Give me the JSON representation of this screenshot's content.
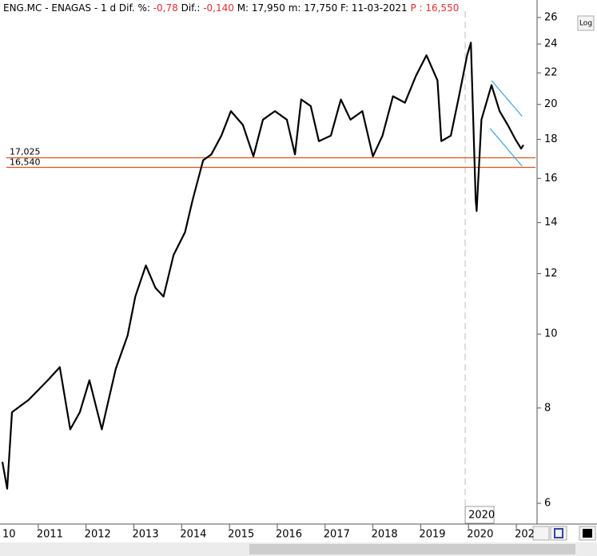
{
  "chart_data": {
    "type": "line",
    "header": [
      {
        "text": "ENG.MC - ENAGAS -  1 d Dif. %: ",
        "color": "#000000"
      },
      {
        "text": "-0,78",
        "color": "#e03030"
      },
      {
        "text": " Dif.: ",
        "color": "#000000"
      },
      {
        "text": "-0,140",
        "color": "#e03030"
      },
      {
        "text": " M: 17,950  m: 17,750  F: 11-03-2021 ",
        "color": "#000000"
      },
      {
        "text": "P : 16,550",
        "color": "#e03030"
      }
    ],
    "log_button": "Log",
    "log_scale": true,
    "xlim": [
      2010.2,
      2021.4
    ],
    "ylim": [
      5.65,
      26.5
    ],
    "xticks": [
      {
        "value": 2010,
        "label": "10"
      },
      2011,
      2012,
      2013,
      2014,
      2015,
      2016,
      2017,
      2018,
      2019,
      2020,
      {
        "value": 2021,
        "label": "202"
      }
    ],
    "yticks": [
      6,
      8,
      10,
      12,
      14,
      16,
      18,
      20,
      22,
      24,
      26
    ],
    "series": [
      {
        "color": "#000000",
        "x": [
          2010.25,
          2010.35,
          2010.45,
          2010.8,
          2011.2,
          2011.45,
          2011.67,
          2011.87,
          2012.07,
          2012.33,
          2012.62,
          2012.87,
          2013.03,
          2013.25,
          2013.45,
          2013.62,
          2013.83,
          2014.07,
          2014.23,
          2014.45,
          2014.62,
          2014.83,
          2015.03,
          2015.28,
          2015.5,
          2015.7,
          2015.95,
          2016.2,
          2016.37,
          2016.5,
          2016.7,
          2016.87,
          2017.12,
          2017.33,
          2017.53,
          2017.78,
          2018.0,
          2018.2,
          2018.42,
          2018.67,
          2018.9,
          2019.12,
          2019.35,
          2019.43,
          2019.63,
          2019.8,
          2019.97,
          2020.05,
          2020.15,
          2020.17,
          2020.27,
          2020.48,
          2020.65,
          2020.82,
          2020.98,
          2021.1,
          2021.15
        ],
        "values": [
          6.8,
          6.27,
          7.9,
          8.2,
          8.7,
          9.05,
          7.5,
          7.9,
          8.7,
          7.5,
          9.0,
          9.96,
          11.2,
          12.3,
          11.5,
          11.2,
          12.7,
          13.6,
          15.0,
          16.9,
          17.2,
          18.2,
          19.6,
          18.8,
          17.1,
          19.1,
          19.6,
          19.1,
          17.2,
          20.3,
          19.9,
          17.9,
          18.2,
          20.3,
          19.1,
          19.6,
          17.1,
          18.2,
          20.5,
          20.1,
          21.8,
          23.2,
          21.5,
          17.9,
          18.2,
          20.5,
          23.2,
          24.1,
          15.0,
          14.5,
          19.1,
          21.2,
          19.6,
          18.8,
          18.0,
          17.5,
          17.7
        ]
      }
    ],
    "levels": [
      {
        "value": 17.025,
        "label": "17,025",
        "color": "#d9541c"
      },
      {
        "value": 16.54,
        "label": "16,540",
        "color": "#d9541c"
      }
    ],
    "trend_lines": [
      {
        "x": [
          2020.48,
          2021.12
        ],
        "y": [
          21.5,
          19.3
        ],
        "color": "#3aa6d8"
      },
      {
        "x": [
          2020.45,
          2021.12
        ],
        "y": [
          18.6,
          16.6
        ],
        "color": "#3aa6d8"
      }
    ],
    "marker": {
      "x": 2019.93,
      "label": "2020"
    }
  }
}
